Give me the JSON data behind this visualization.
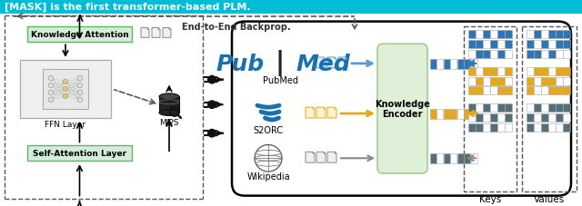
{
  "title_text": "[MASK] is the first transformer-based PLM.",
  "title_bg": "#00BCD4",
  "title_text_color": "white",
  "end_to_end_label": "End-to-End Backprop.",
  "knowledge_attention_label": "Knowledge Attention",
  "ffn_layer_label": "FFN Layer",
  "mips_label": "MIPS",
  "self_attention_label": "Self-Attention Layer",
  "pubmed_label": "PubMed",
  "s2orc_label": "S2ORC",
  "wikipedia_label": "Wikipedia",
  "knowledge_encoder_label": "Knowledge\nEncoder",
  "keys_label": "Keys",
  "values_label": "Values",
  "bg_color": "#ffffff",
  "blue_color": "#1a6faf",
  "blue_dark": "#1565C0",
  "yellow_color": "#E6A817",
  "gray_color": "#607D8B"
}
